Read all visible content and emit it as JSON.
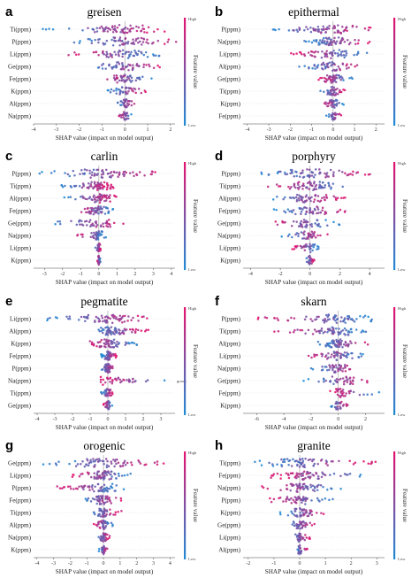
{
  "colorbar": {
    "title": "Feature value",
    "high": "High",
    "low": "Low",
    "low_color": "#1f8bd6",
    "high_color": "#e3126f"
  },
  "chart_data": [
    {
      "letter": "a",
      "title": "greisen",
      "type": "scatter",
      "features": [
        "Ti(ppm)",
        "P(ppm)",
        "Li(ppm)",
        "Ge(ppm)",
        "Fe(ppm)",
        "K(ppm)",
        "Al(ppm)",
        "Na(ppm)"
      ],
      "spread": [
        [
          -3.8,
          1.9
        ],
        [
          -2.8,
          2.6
        ],
        [
          -2.6,
          1.6
        ],
        [
          -1.6,
          1.6
        ],
        [
          -1.2,
          1.3
        ],
        [
          -0.8,
          1.0
        ],
        [
          -0.4,
          0.5
        ],
        [
          -0.3,
          0.3
        ]
      ],
      "high_side": [
        1,
        1,
        -1,
        1,
        -1,
        1,
        1,
        -1
      ],
      "xlim": [
        -4,
        2.2
      ],
      "ticks": [
        -4,
        -3,
        -2,
        -1,
        0,
        1,
        2
      ],
      "xlabel": "SHAP value (impact on model output)",
      "annotation": ""
    },
    {
      "letter": "b",
      "title": "epithermal",
      "type": "scatter",
      "features": [
        "P(ppm)",
        "Na(ppm)",
        "Li(ppm)",
        "Al(ppm)",
        "Ge(ppm)",
        "Ti(ppm)",
        "K(ppm)",
        "Fe(ppm)"
      ],
      "spread": [
        [
          -3.5,
          2.2
        ],
        [
          -1.5,
          1.8
        ],
        [
          -2.0,
          1.6
        ],
        [
          -1.6,
          1.5
        ],
        [
          -0.7,
          0.9
        ],
        [
          -0.6,
          0.6
        ],
        [
          -0.5,
          0.5
        ],
        [
          -0.4,
          0.4
        ]
      ],
      "high_side": [
        1,
        1,
        -1,
        1,
        -1,
        1,
        -1,
        1
      ],
      "xlim": [
        -4.2,
        2.4
      ],
      "ticks": [
        -4,
        -3,
        -2,
        -1,
        0,
        1,
        2
      ],
      "xlabel": "SHAP value (impact on model output)",
      "annotation": ""
    },
    {
      "letter": "c",
      "title": "carlin",
      "type": "scatter",
      "features": [
        "P(ppm)",
        "Ti(ppm)",
        "Al(ppm)",
        "Fe(ppm)",
        "Ge(ppm)",
        "Na(ppm)",
        "Li(ppm)",
        "K(ppm)"
      ],
      "spread": [
        [
          -3.3,
          3.9
        ],
        [
          -2.2,
          0.8
        ],
        [
          -2.0,
          1.0
        ],
        [
          -1.2,
          0.9
        ],
        [
          -2.8,
          1.5
        ],
        [
          -1.2,
          0.4
        ],
        [
          -0.2,
          0.1
        ],
        [
          -0.1,
          0.1
        ]
      ],
      "high_side": [
        1,
        1,
        1,
        -1,
        1,
        -1,
        1,
        -1
      ],
      "xlim": [
        -3.6,
        4.2
      ],
      "ticks": [
        -3,
        -2,
        -1,
        0,
        1,
        2,
        3,
        4
      ],
      "xlabel": "SHAP value (impact on model output)",
      "annotation": ""
    },
    {
      "letter": "d",
      "title": "porphyry",
      "type": "scatter",
      "features": [
        "P(ppm)",
        "Ti(ppm)",
        "Al(ppm)",
        "Fe(ppm)",
        "Ge(ppm)",
        "Na(ppm)",
        "Li(ppm)",
        "K(ppm)"
      ],
      "spread": [
        [
          -3.5,
          4.6
        ],
        [
          -3.0,
          3.0
        ],
        [
          -3.2,
          2.4
        ],
        [
          -2.6,
          2.8
        ],
        [
          -2.8,
          2.0
        ],
        [
          -2.0,
          1.2
        ],
        [
          -1.2,
          0.6
        ],
        [
          -0.3,
          0.3
        ]
      ],
      "high_side": [
        1,
        -1,
        1,
        1,
        -1,
        1,
        -1,
        1
      ],
      "xlim": [
        -4.5,
        5.0
      ],
      "ticks": [
        -4,
        -2,
        0,
        2,
        4
      ],
      "xlabel": "SHAP value (impact on model output)",
      "annotation": ""
    },
    {
      "letter": "e",
      "title": "pegmatite",
      "type": "scatter",
      "features": [
        "Li(ppm)",
        "Al(ppm)",
        "K(ppm)",
        "Fe(ppm)",
        "P(ppm)",
        "Na(ppm)",
        "Ti(ppm)",
        "Ge(ppm)"
      ],
      "spread": [
        [
          -3.7,
          2.9
        ],
        [
          -1.0,
          2.3
        ],
        [
          -1.3,
          1.7
        ],
        [
          -0.4,
          0.5
        ],
        [
          -0.4,
          0.4
        ],
        [
          -0.4,
          3.4
        ],
        [
          -0.4,
          0.3
        ],
        [
          -0.3,
          0.3
        ]
      ],
      "high_side": [
        1,
        1,
        -1,
        1,
        1,
        -1,
        1,
        -1
      ],
      "xlim": [
        -4.2,
        3.8
      ],
      "ticks": [
        -4,
        -3,
        -2,
        -1,
        0,
        1,
        2,
        3
      ],
      "xlabel": "SHAP value (impact on model output)",
      "annotation": "group"
    },
    {
      "letter": "f",
      "title": "skarn",
      "type": "scatter",
      "features": [
        "P(ppm)",
        "Ti(ppm)",
        "Al(ppm)",
        "Li(ppm)",
        "Na(ppm)",
        "Ge(ppm)",
        "Fe(ppm)",
        "K(ppm)"
      ],
      "spread": [
        [
          -6.2,
          2.9
        ],
        [
          -5.0,
          2.6
        ],
        [
          -1.5,
          2.2
        ],
        [
          -2.4,
          1.9
        ],
        [
          -2.0,
          1.4
        ],
        [
          -2.6,
          2.7
        ],
        [
          -0.6,
          3.0
        ],
        [
          -0.7,
          0.7
        ]
      ],
      "high_side": [
        -1,
        -1,
        1,
        -1,
        1,
        1,
        -1,
        1
      ],
      "xlim": [
        -7.0,
        3.4
      ],
      "ticks": [
        -6,
        -4,
        -2,
        0,
        2
      ],
      "xlabel": "SHAP value (impact on model output)",
      "annotation": ""
    },
    {
      "letter": "g",
      "title": "orogenic",
      "type": "scatter",
      "features": [
        "Ge(ppm)",
        "Li(ppm)",
        "P(ppm)",
        "Fe(ppm)",
        "Ti(ppm)",
        "Al(ppm)",
        "Na(ppm)",
        "K(ppm)"
      ],
      "spread": [
        [
          -3.7,
          4.2
        ],
        [
          -1.9,
          1.7
        ],
        [
          -2.8,
          1.3
        ],
        [
          -1.4,
          1.1
        ],
        [
          -1.0,
          1.1
        ],
        [
          -0.6,
          0.6
        ],
        [
          -0.4,
          0.4
        ],
        [
          -0.3,
          0.3
        ]
      ],
      "high_side": [
        1,
        -1,
        -1,
        1,
        1,
        -1,
        1,
        1
      ],
      "xlim": [
        -4.2,
        4.3
      ],
      "ticks": [
        -4,
        -3,
        -2,
        -1,
        0,
        1,
        2,
        3,
        4
      ],
      "xlabel": "SHAP value (impact on model output)",
      "annotation": ""
    },
    {
      "letter": "h",
      "title": "granite",
      "type": "scatter",
      "features": [
        "Ti(ppm)",
        "Fe(ppm)",
        "Na(ppm)",
        "P(ppm)",
        "K(ppm)",
        "Ge(ppm)",
        "Li(ppm)",
        "Al(ppm)"
      ],
      "spread": [
        [
          -1.8,
          3.0
        ],
        [
          -1.3,
          2.9
        ],
        [
          -1.5,
          1.7
        ],
        [
          -1.2,
          1.4
        ],
        [
          -0.8,
          1.0
        ],
        [
          -0.5,
          0.6
        ],
        [
          -0.3,
          0.4
        ],
        [
          -0.2,
          0.3
        ]
      ],
      "high_side": [
        1,
        -1,
        -1,
        -1,
        1,
        1,
        1,
        1
      ],
      "xlim": [
        -2.2,
        3.3
      ],
      "ticks": [
        -2,
        -1,
        0,
        1,
        2,
        3
      ],
      "xlabel": "SHAP value (impact on model output)",
      "annotation": ""
    }
  ]
}
